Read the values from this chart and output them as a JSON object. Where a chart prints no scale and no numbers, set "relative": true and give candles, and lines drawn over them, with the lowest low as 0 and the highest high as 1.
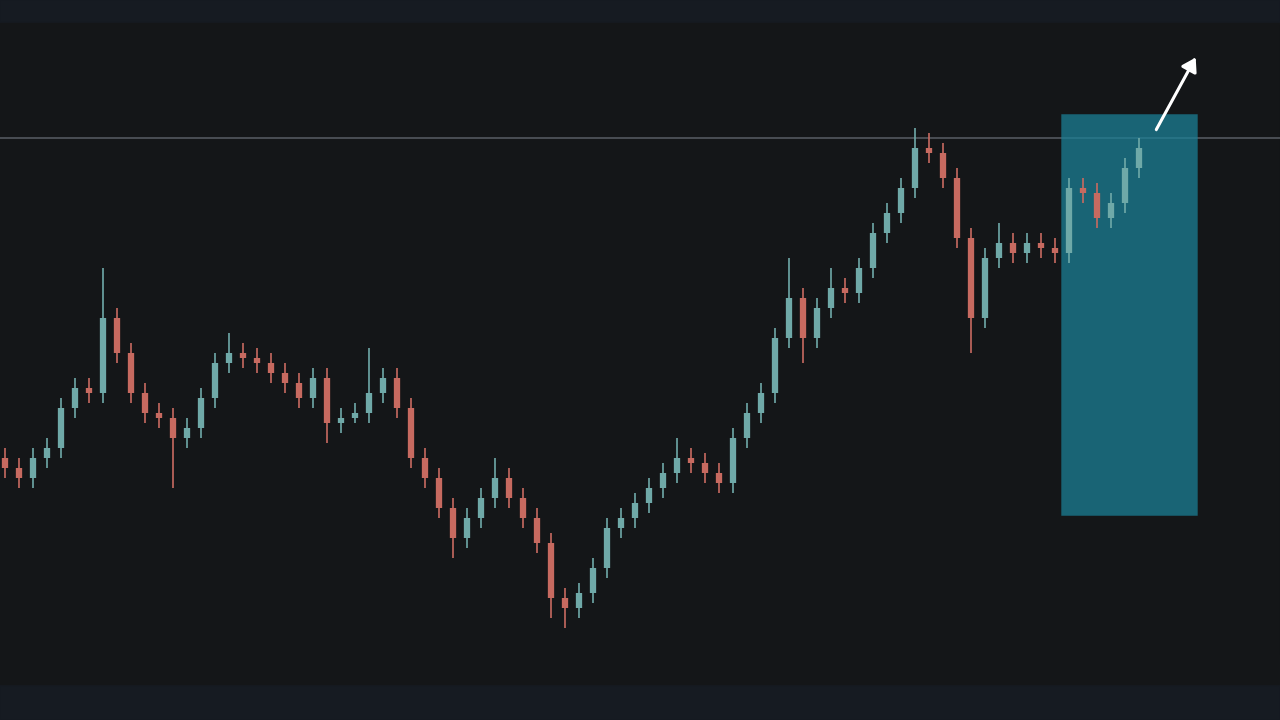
{
  "chart_data": {
    "type": "candlestick",
    "relative": true,
    "grid": false,
    "categories": [
      null,
      null,
      null,
      null,
      null,
      null,
      null,
      null,
      null,
      null,
      null,
      null,
      null,
      null,
      null,
      null,
      null,
      null,
      null,
      null,
      null,
      null,
      null,
      null,
      null,
      null,
      null,
      null,
      null,
      null,
      null,
      null,
      null,
      null,
      null,
      null,
      null,
      null,
      null,
      null,
      null,
      null,
      null,
      null,
      null,
      null,
      null,
      null,
      null,
      null,
      null,
      null,
      null,
      null,
      null,
      null,
      null,
      null,
      null,
      null,
      null,
      null,
      null,
      null,
      null,
      null,
      null,
      null,
      null,
      null,
      null,
      null,
      null,
      null,
      null,
      null,
      null,
      null,
      null,
      null,
      null,
      null
    ],
    "ohlc": [
      [
        0.34,
        0.36,
        0.3,
        0.32
      ],
      [
        0.32,
        0.34,
        0.28,
        0.3
      ],
      [
        0.3,
        0.36,
        0.28,
        0.34
      ],
      [
        0.34,
        0.38,
        0.32,
        0.36
      ],
      [
        0.36,
        0.46,
        0.34,
        0.44
      ],
      [
        0.44,
        0.5,
        0.42,
        0.48
      ],
      [
        0.48,
        0.5,
        0.45,
        0.47
      ],
      [
        0.47,
        0.72,
        0.45,
        0.62
      ],
      [
        0.62,
        0.64,
        0.53,
        0.55
      ],
      [
        0.55,
        0.57,
        0.45,
        0.47
      ],
      [
        0.47,
        0.49,
        0.41,
        0.43
      ],
      [
        0.43,
        0.45,
        0.4,
        0.42
      ],
      [
        0.42,
        0.44,
        0.28,
        0.38
      ],
      [
        0.38,
        0.42,
        0.36,
        0.4
      ],
      [
        0.4,
        0.48,
        0.38,
        0.46
      ],
      [
        0.46,
        0.55,
        0.44,
        0.53
      ],
      [
        0.53,
        0.59,
        0.51,
        0.55
      ],
      [
        0.55,
        0.57,
        0.52,
        0.54
      ],
      [
        0.54,
        0.56,
        0.51,
        0.53
      ],
      [
        0.53,
        0.55,
        0.49,
        0.51
      ],
      [
        0.51,
        0.53,
        0.47,
        0.49
      ],
      [
        0.49,
        0.51,
        0.44,
        0.46
      ],
      [
        0.46,
        0.52,
        0.44,
        0.5
      ],
      [
        0.5,
        0.52,
        0.37,
        0.41
      ],
      [
        0.41,
        0.44,
        0.39,
        0.42
      ],
      [
        0.42,
        0.45,
        0.41,
        0.43
      ],
      [
        0.43,
        0.56,
        0.41,
        0.47
      ],
      [
        0.47,
        0.52,
        0.45,
        0.5
      ],
      [
        0.5,
        0.52,
        0.42,
        0.44
      ],
      [
        0.44,
        0.46,
        0.32,
        0.34
      ],
      [
        0.34,
        0.36,
        0.28,
        0.3
      ],
      [
        0.3,
        0.32,
        0.22,
        0.24
      ],
      [
        0.24,
        0.26,
        0.14,
        0.18
      ],
      [
        0.18,
        0.24,
        0.16,
        0.22
      ],
      [
        0.22,
        0.28,
        0.2,
        0.26
      ],
      [
        0.26,
        0.34,
        0.24,
        0.3
      ],
      [
        0.3,
        0.32,
        0.24,
        0.26
      ],
      [
        0.26,
        0.28,
        0.2,
        0.22
      ],
      [
        0.22,
        0.24,
        0.15,
        0.17
      ],
      [
        0.17,
        0.19,
        0.02,
        0.06
      ],
      [
        0.06,
        0.08,
        0.0,
        0.04
      ],
      [
        0.04,
        0.09,
        0.02,
        0.07
      ],
      [
        0.07,
        0.14,
        0.05,
        0.12
      ],
      [
        0.12,
        0.22,
        0.1,
        0.2
      ],
      [
        0.2,
        0.24,
        0.18,
        0.22
      ],
      [
        0.22,
        0.27,
        0.2,
        0.25
      ],
      [
        0.25,
        0.3,
        0.23,
        0.28
      ],
      [
        0.28,
        0.33,
        0.26,
        0.31
      ],
      [
        0.31,
        0.38,
        0.29,
        0.34
      ],
      [
        0.34,
        0.36,
        0.31,
        0.33
      ],
      [
        0.33,
        0.35,
        0.29,
        0.31
      ],
      [
        0.31,
        0.33,
        0.27,
        0.29
      ],
      [
        0.29,
        0.4,
        0.27,
        0.38
      ],
      [
        0.38,
        0.45,
        0.36,
        0.43
      ],
      [
        0.43,
        0.49,
        0.41,
        0.47
      ],
      [
        0.47,
        0.6,
        0.45,
        0.58
      ],
      [
        0.58,
        0.74,
        0.56,
        0.66
      ],
      [
        0.66,
        0.68,
        0.53,
        0.58
      ],
      [
        0.58,
        0.66,
        0.56,
        0.64
      ],
      [
        0.64,
        0.72,
        0.62,
        0.68
      ],
      [
        0.68,
        0.7,
        0.65,
        0.67
      ],
      [
        0.67,
        0.74,
        0.65,
        0.72
      ],
      [
        0.72,
        0.81,
        0.7,
        0.79
      ],
      [
        0.79,
        0.85,
        0.77,
        0.83
      ],
      [
        0.83,
        0.9,
        0.81,
        0.88
      ],
      [
        0.88,
        1.0,
        0.86,
        0.96
      ],
      [
        0.96,
        0.99,
        0.93,
        0.95
      ],
      [
        0.95,
        0.97,
        0.88,
        0.9
      ],
      [
        0.9,
        0.92,
        0.76,
        0.78
      ],
      [
        0.78,
        0.8,
        0.55,
        0.62
      ],
      [
        0.62,
        0.76,
        0.6,
        0.74
      ],
      [
        0.74,
        0.81,
        0.72,
        0.77
      ],
      [
        0.77,
        0.79,
        0.73,
        0.75
      ],
      [
        0.75,
        0.79,
        0.73,
        0.77
      ],
      [
        0.77,
        0.79,
        0.74,
        0.76
      ],
      [
        0.76,
        0.78,
        0.73,
        0.75
      ],
      [
        0.75,
        0.9,
        0.73,
        0.88
      ],
      [
        0.88,
        0.9,
        0.85,
        0.87
      ],
      [
        0.87,
        0.89,
        0.8,
        0.82
      ],
      [
        0.82,
        0.87,
        0.8,
        0.85
      ],
      [
        0.85,
        0.94,
        0.83,
        0.92
      ],
      [
        0.92,
        0.98,
        0.9,
        0.96
      ]
    ],
    "colors": [
      "#c76a60",
      "#c76a60",
      "#6fa9a8",
      "#6fa9a8",
      "#6fa9a8",
      "#6fa9a8",
      "#c76a60",
      "#6fa9a8",
      "#c76a60",
      "#c76a60",
      "#c76a60",
      "#c76a60",
      "#c76a60",
      "#6fa9a8",
      "#6fa9a8",
      "#6fa9a8",
      "#6fa9a8",
      "#c76a60",
      "#c76a60",
      "#c76a60",
      "#c76a60",
      "#c76a60",
      "#6fa9a8",
      "#c76a60",
      "#6fa9a8",
      "#6fa9a8",
      "#6fa9a8",
      "#6fa9a8",
      "#c76a60",
      "#c76a60",
      "#c76a60",
      "#c76a60",
      "#c76a60",
      "#6fa9a8",
      "#6fa9a8",
      "#6fa9a8",
      "#c76a60",
      "#c76a60",
      "#c76a60",
      "#c76a60",
      "#c76a60",
      "#6fa9a8",
      "#6fa9a8",
      "#6fa9a8",
      "#6fa9a8",
      "#6fa9a8",
      "#6fa9a8",
      "#6fa9a8",
      "#6fa9a8",
      "#c76a60",
      "#c76a60",
      "#c76a60",
      "#6fa9a8",
      "#6fa9a8",
      "#6fa9a8",
      "#6fa9a8",
      "#6fa9a8",
      "#c76a60",
      "#6fa9a8",
      "#6fa9a8",
      "#c76a60",
      "#6fa9a8",
      "#6fa9a8",
      "#6fa9a8",
      "#6fa9a8",
      "#6fa9a8",
      "#c76a60",
      "#c76a60",
      "#c76a60",
      "#c76a60",
      "#6fa9a8",
      "#6fa9a8",
      "#c76a60",
      "#6fa9a8",
      "#c76a60",
      "#c76a60",
      "#6fa9a8",
      "#c76a60",
      "#c76a60",
      "#6fa9a8",
      "#6fa9a8",
      "#6fa9a8"
    ],
    "ref_lines": [
      {
        "axis": "y",
        "value": 0.98,
        "color": "#5a5f66",
        "line_style": "solid"
      }
    ]
  }
}
